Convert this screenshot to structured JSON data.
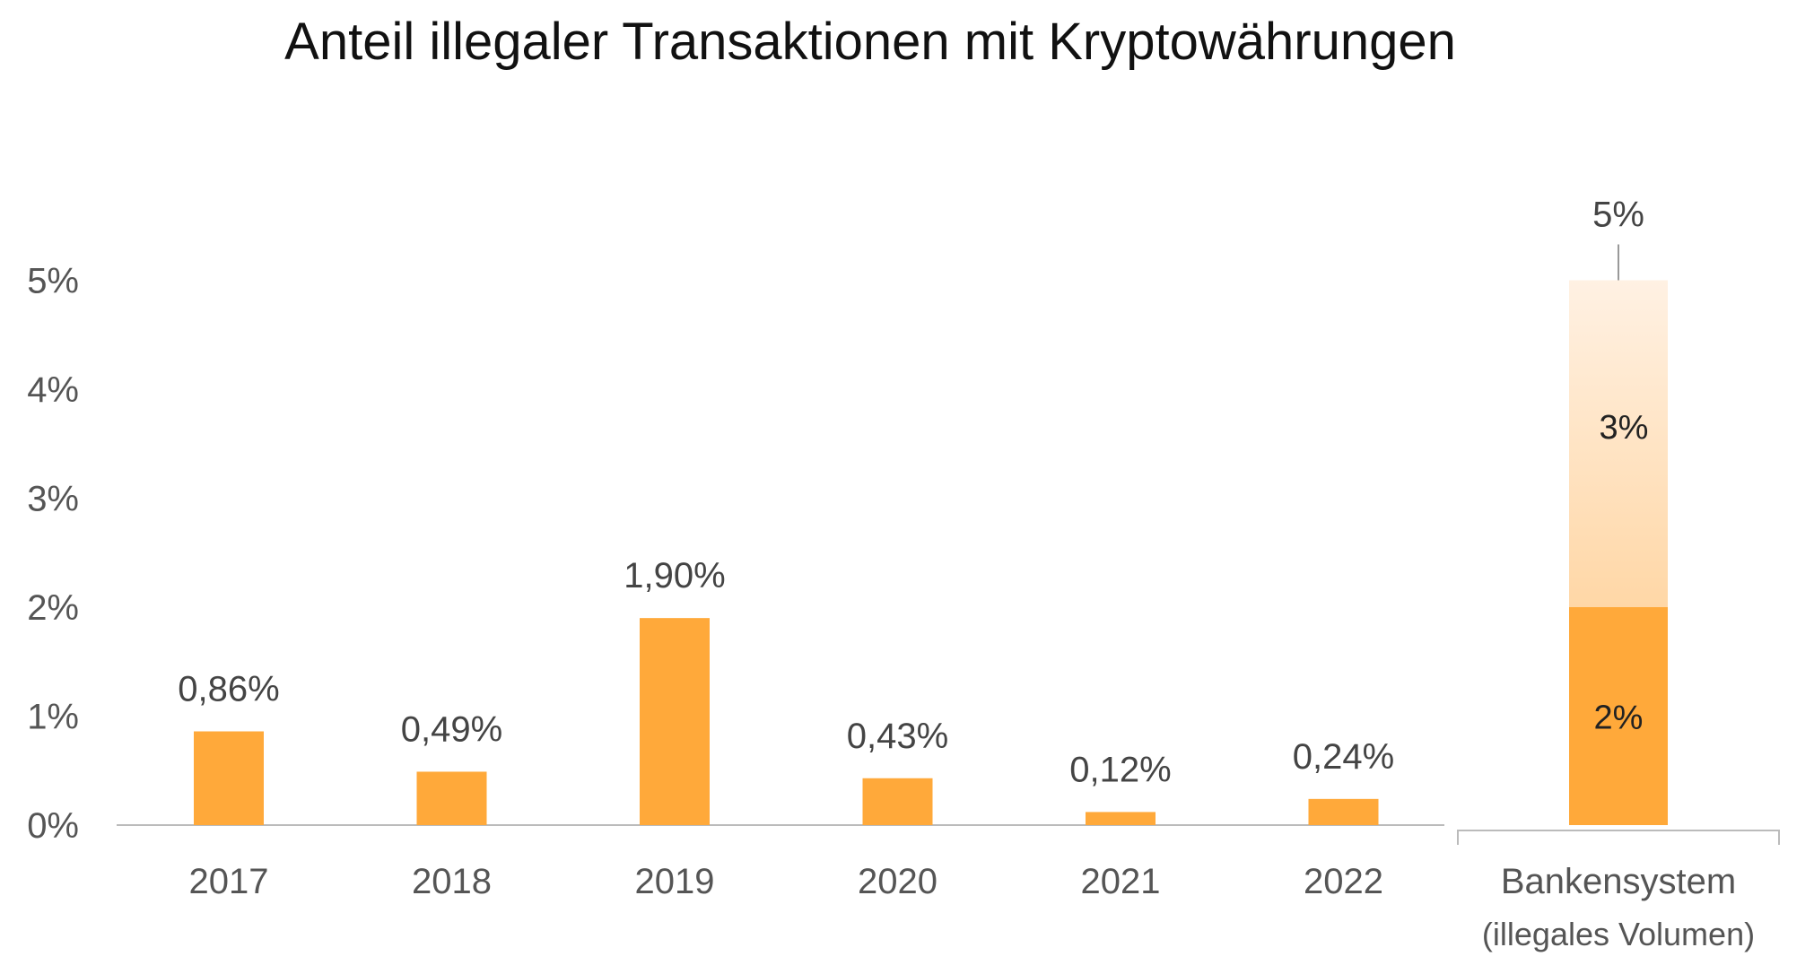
{
  "chart_data": {
    "type": "bar",
    "title": "Anteil illegaler Transaktionen mit Kryptowährungen",
    "xlabel": "",
    "ylabel": "",
    "ylim": [
      0,
      5
    ],
    "y_ticks": [
      "0%",
      "1%",
      "2%",
      "3%",
      "4%",
      "5%"
    ],
    "grid": false,
    "categories": [
      "2017",
      "2018",
      "2019",
      "2020",
      "2021",
      "2022"
    ],
    "values": [
      0.86,
      0.49,
      1.9,
      0.43,
      0.12,
      0.24
    ],
    "value_labels": [
      "0,86%",
      "0,49%",
      "1,90%",
      "0,43%",
      "0,12%",
      "0,24%"
    ],
    "bar_color": "#FFA93A",
    "stacked_bar": {
      "category": "Bankensystem",
      "subcategory": "(illegales Volumen)",
      "total": 5,
      "total_label": "5%",
      "segments": [
        {
          "value": 2,
          "label": "2%",
          "color": "#FFA93A"
        },
        {
          "value": 3,
          "label": "3%",
          "color": "#FFD7A6",
          "color_top": "#FFF1E3"
        }
      ]
    }
  }
}
